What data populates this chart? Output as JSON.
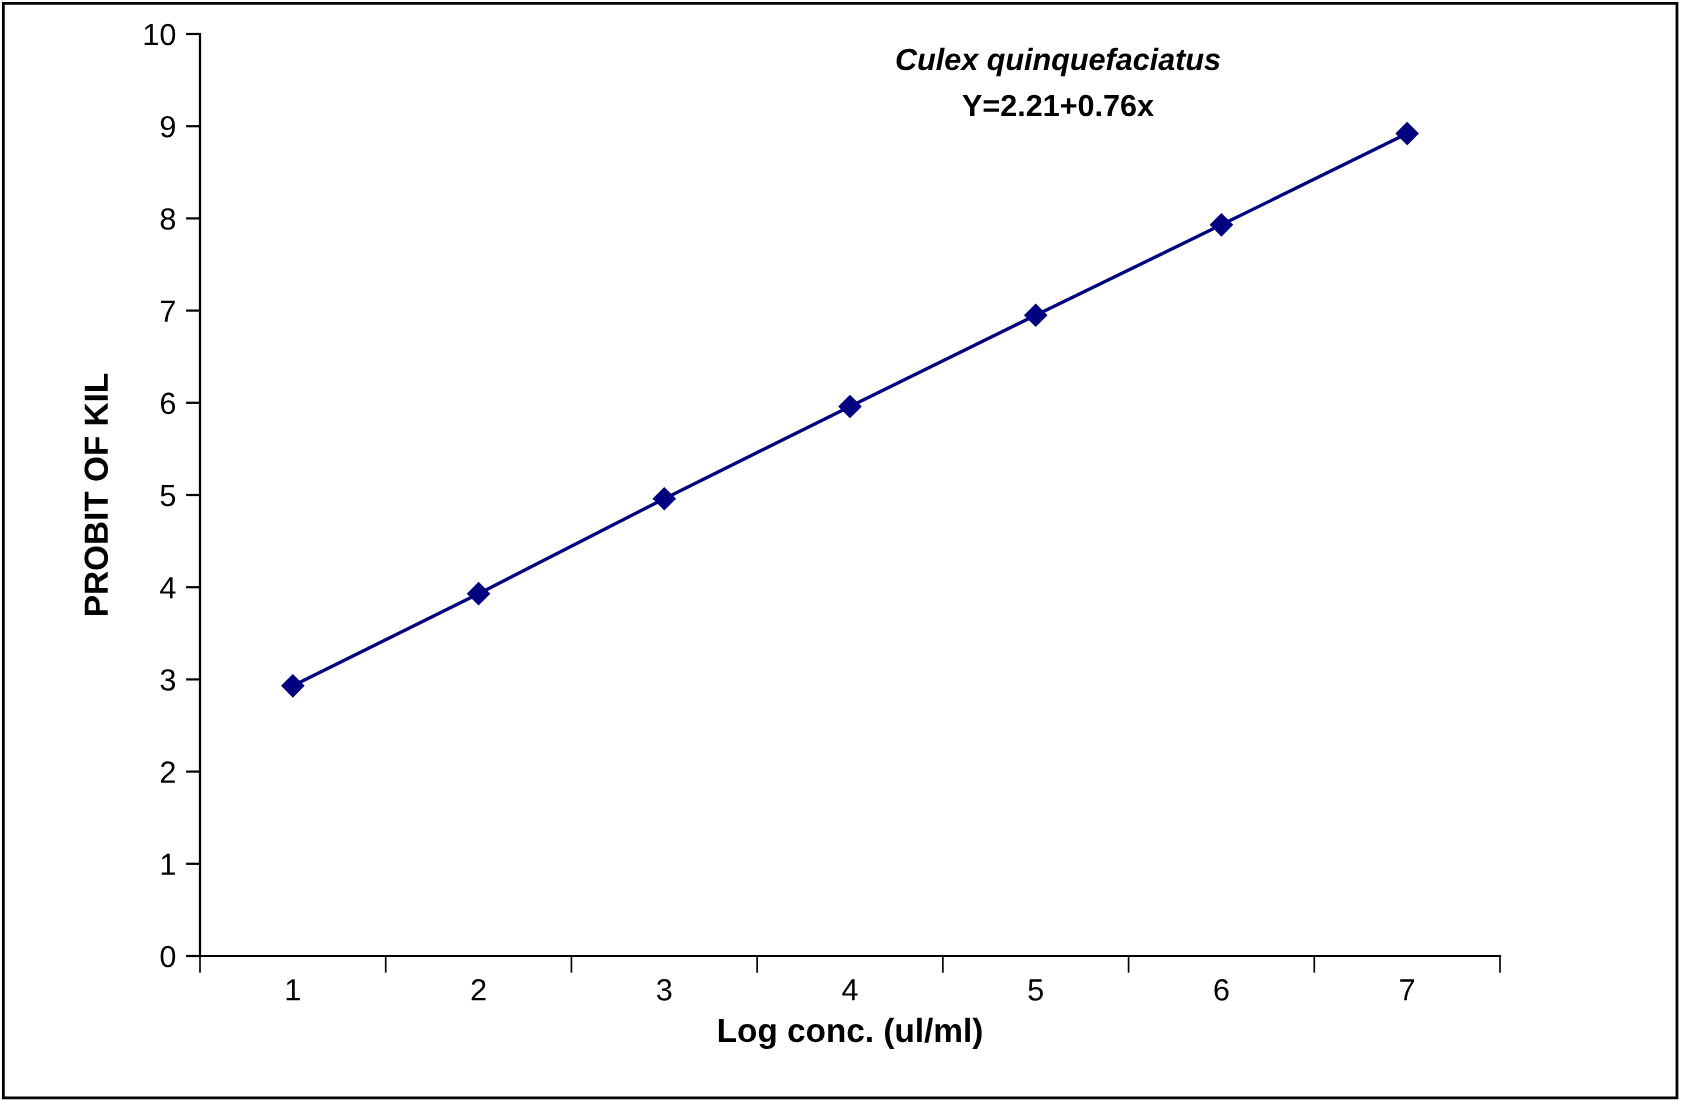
{
  "chart_data": {
    "type": "line",
    "xlabel": "Log conc. (ul/ml)",
    "ylabel": "PROBIT OF KIL",
    "annotations": [
      "Culex quinquefaciatus",
      "Y=2.21+0.76x"
    ],
    "categories": [
      "1",
      "2",
      "3",
      "4",
      "5",
      "6",
      "7"
    ],
    "series": [
      {
        "color": "#000080",
        "values": [
          2.93,
          3.93,
          4.96,
          5.96,
          6.95,
          7.93,
          8.92
        ]
      }
    ],
    "ylim": [
      0,
      10
    ],
    "yticks": [
      0,
      1,
      2,
      3,
      4,
      5,
      6,
      7,
      8,
      9,
      10
    ],
    "marker": "diamond",
    "line_style": "solid",
    "grid": false,
    "legend": false
  }
}
